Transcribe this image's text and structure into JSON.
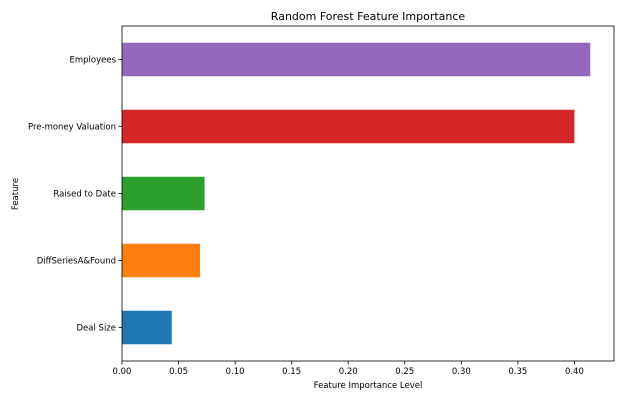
{
  "chart_data": {
    "type": "bar",
    "orientation": "horizontal",
    "title": "Random Forest Feature Importance",
    "xlabel": "Feature Importance Level",
    "ylabel": "Feature",
    "categories": [
      "Deal Size",
      "DiffSeriesA&Found",
      "Raised to Date",
      "Pre-money Valuation",
      "Employees"
    ],
    "values": [
      0.044,
      0.069,
      0.073,
      0.4,
      0.414
    ],
    "colors": [
      "#1f77b4",
      "#ff7f0e",
      "#2ca02c",
      "#d62728",
      "#9467bd"
    ],
    "xlim": [
      0.0,
      0.435
    ],
    "xticks": [
      0.0,
      0.05,
      0.1,
      0.15,
      0.2,
      0.25,
      0.3,
      0.35,
      0.4
    ],
    "xtick_labels": [
      "0.00",
      "0.05",
      "0.10",
      "0.15",
      "0.20",
      "0.25",
      "0.30",
      "0.35",
      "0.40"
    ],
    "grid": false,
    "legend": false
  }
}
